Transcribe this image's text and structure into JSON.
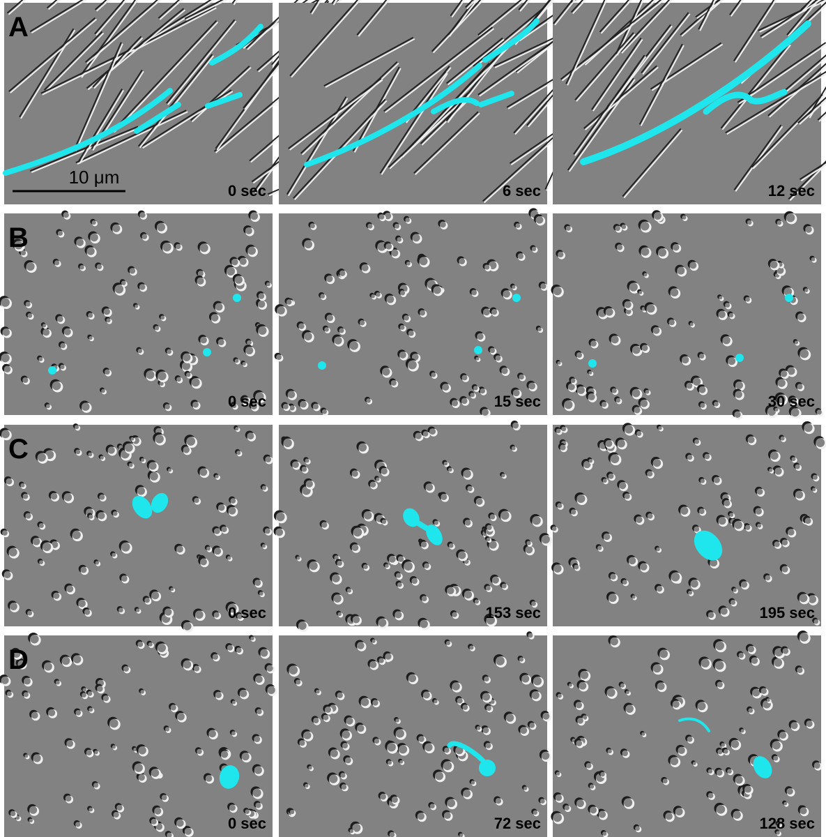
{
  "rows": [
    {
      "label": "A",
      "times": [
        "0 sec",
        "6 sec",
        "12 sec"
      ]
    },
    {
      "label": "B",
      "times": [
        "0 sec",
        "15 sec",
        "30 sec"
      ]
    },
    {
      "label": "C",
      "times": [
        "0 sec",
        "153 sec",
        "195 sec"
      ]
    },
    {
      "label": "D",
      "times": [
        "0 sec",
        "72 sec",
        "128 sec"
      ]
    }
  ],
  "scale_bar": "10 μm"
}
